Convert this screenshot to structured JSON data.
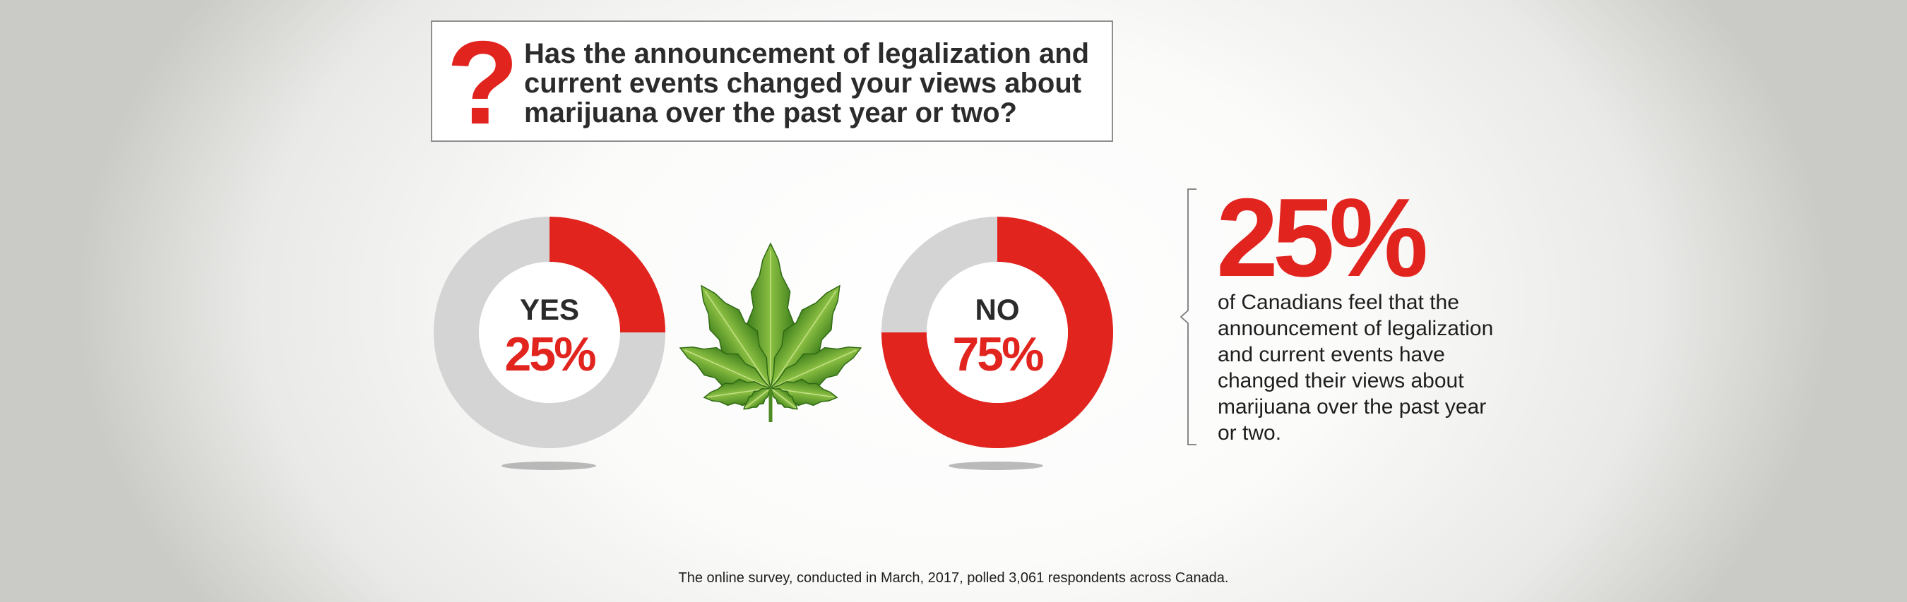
{
  "question": "Has the announcement of legalization and current events changed your views about marijuana over the past year or two?",
  "question_icon": "question-mark-icon",
  "leaf_icon": "cannabis-leaf-icon",
  "colors": {
    "accent": "#e2241f",
    "track": "#d4d4d4",
    "leaf": "#5e9b2a"
  },
  "chart_data": [
    {
      "type": "pie",
      "label": "YES",
      "value_label": "25%",
      "value": 25,
      "max": 100
    },
    {
      "type": "pie",
      "label": "NO",
      "value_label": "75%",
      "value": 75,
      "max": 100
    }
  ],
  "stat": {
    "value": "25%",
    "text": "of Canadians feel that the announcement of legalization and current events have changed their views about marijuana over the past year or two."
  },
  "footnote": "The online survey, conducted in March, 2017, polled 3,061 respondents across Canada."
}
